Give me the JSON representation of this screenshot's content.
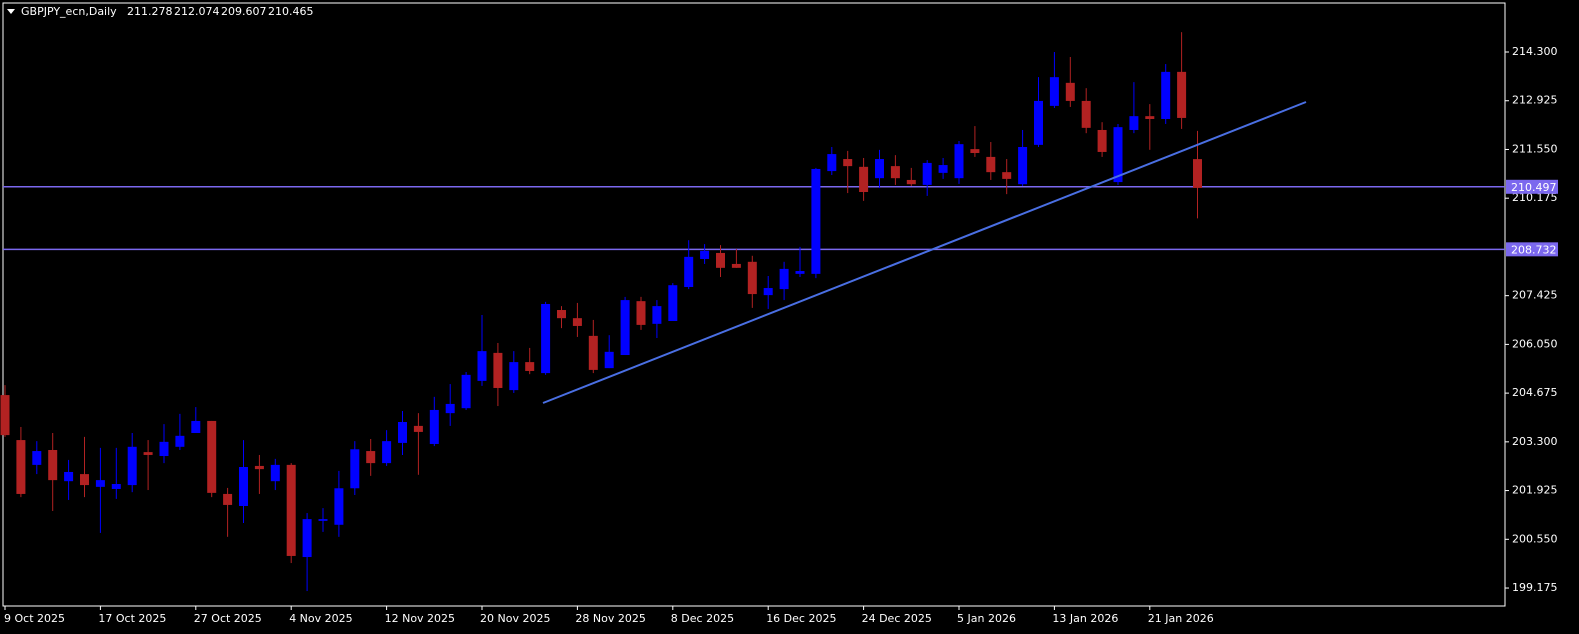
{
  "chart_data": {
    "type": "candlestick",
    "title": "GBPJPY_ecn,Daily",
    "categories": [
      "9 Oct 2025",
      null,
      null,
      null,
      null,
      null,
      "17 Oct 2025",
      null,
      null,
      null,
      null,
      null,
      "27 Oct 2025",
      null,
      null,
      null,
      null,
      null,
      "4 Nov 2025",
      null,
      null,
      null,
      null,
      null,
      "12 Nov 2025",
      null,
      null,
      null,
      null,
      null,
      "20 Nov 2025",
      null,
      null,
      null,
      null,
      null,
      "28 Nov 2025",
      null,
      null,
      null,
      null,
      null,
      "8 Dec 2025",
      null,
      null,
      null,
      null,
      null,
      "16 Dec 2025",
      null,
      null,
      null,
      null,
      null,
      "24 Dec 2025",
      null,
      null,
      null,
      null,
      null,
      "5 Jan 2026",
      null,
      null,
      null,
      null,
      null,
      "13 Jan 2026",
      null,
      null,
      null,
      null,
      null,
      "21 Jan 2026",
      null,
      null,
      null
    ],
    "open": [
      204.62,
      203.35,
      202.65,
      203.07,
      202.19,
      202.39,
      202.03,
      201.97,
      202.08,
      203.01,
      202.9,
      203.16,
      203.55,
      203.89,
      201.83,
      201.49,
      202.62,
      202.19,
      202.65,
      200.05,
      201.07,
      200.96,
      201.99,
      203.04,
      202.7,
      203.27,
      203.75,
      203.24,
      204.11,
      204.25,
      205.02,
      205.81,
      204.76,
      205.55,
      205.24,
      207.02,
      206.79,
      206.29,
      205.38,
      205.75,
      207.27,
      206.63,
      206.71,
      207.67,
      208.46,
      208.63,
      208.32,
      208.38,
      207.44,
      207.61,
      208.04,
      208.04,
      210.94,
      211.28,
      211.06,
      210.74,
      211.08,
      210.69,
      210.55,
      210.89,
      210.74,
      211.56,
      211.34,
      210.91,
      210.57,
      211.68,
      212.78,
      213.43,
      212.92,
      212.1,
      210.63,
      212.1,
      212.49,
      212.41,
      213.74,
      211.278
    ],
    "high": [
      204.9,
      203.72,
      203.32,
      203.55,
      202.79,
      203.44,
      203.13,
      203.13,
      203.55,
      203.35,
      203.8,
      204.09,
      204.28,
      203.89,
      202.0,
      203.35,
      202.93,
      202.82,
      202.7,
      201.29,
      201.43,
      202.48,
      203.32,
      203.38,
      203.63,
      204.17,
      204.11,
      204.57,
      204.93,
      205.27,
      206.88,
      206.09,
      205.86,
      205.95,
      207.25,
      207.13,
      207.22,
      206.74,
      206.31,
      207.39,
      207.39,
      207.3,
      207.78,
      208.99,
      208.88,
      208.85,
      208.74,
      208.55,
      207.98,
      208.38,
      208.8,
      211.03,
      211.62,
      211.51,
      211.31,
      211.54,
      211.39,
      211.03,
      211.25,
      211.31,
      211.79,
      212.21,
      211.76,
      211.28,
      212.1,
      213.59,
      214.3,
      214.16,
      213.28,
      212.32,
      212.27,
      213.45,
      212.83,
      213.96,
      214.86,
      212.074
    ],
    "low": [
      203.44,
      201.74,
      202.39,
      201.35,
      201.66,
      201.74,
      200.73,
      201.69,
      201.88,
      201.94,
      202.7,
      203.07,
      203.55,
      201.74,
      200.62,
      201.01,
      201.83,
      201.94,
      199.88,
      199.09,
      200.76,
      200.62,
      201.8,
      202.34,
      202.62,
      202.93,
      202.37,
      203.18,
      203.75,
      204.2,
      204.88,
      204.31,
      204.68,
      205.21,
      205.19,
      206.51,
      206.26,
      205.24,
      205.38,
      205.75,
      206.46,
      206.23,
      206.71,
      207.61,
      208.32,
      207.95,
      208.21,
      207.08,
      207.05,
      207.3,
      207.95,
      207.92,
      210.83,
      210.32,
      210.1,
      210.46,
      210.55,
      210.52,
      210.24,
      210.72,
      210.58,
      211.34,
      210.69,
      210.29,
      210.52,
      211.62,
      212.72,
      212.75,
      212.01,
      211.34,
      210.55,
      212.01,
      211.54,
      212.27,
      212.13,
      209.607
    ],
    "close": [
      203.49,
      201.83,
      203.04,
      202.22,
      202.45,
      202.08,
      202.22,
      202.11,
      203.16,
      202.93,
      203.3,
      203.47,
      203.89,
      201.86,
      201.52,
      202.59,
      202.53,
      202.65,
      200.08,
      201.12,
      201.12,
      201.99,
      203.09,
      202.7,
      203.32,
      203.86,
      203.58,
      204.2,
      204.37,
      205.19,
      205.86,
      204.82,
      205.55,
      205.3,
      207.19,
      206.79,
      206.57,
      205.33,
      205.84,
      207.3,
      206.6,
      207.13,
      207.72,
      208.52,
      208.69,
      208.21,
      208.21,
      207.47,
      207.64,
      208.18,
      208.12,
      211.0,
      211.42,
      211.08,
      210.35,
      211.28,
      210.74,
      210.57,
      211.17,
      211.11,
      211.7,
      211.45,
      210.91,
      210.72,
      211.62,
      212.92,
      213.59,
      212.92,
      212.16,
      211.48,
      212.18,
      212.49,
      212.41,
      213.74,
      212.44,
      210.465
    ],
    "ylim": [
      198.668,
      215.683
    ],
    "yticks": [
      {
        "value": 214.3,
        "label": "214.300"
      },
      {
        "value": 212.925,
        "label": "212.925"
      },
      {
        "value": 211.55,
        "label": "211.550"
      },
      {
        "value": 210.175,
        "label": "210.175"
      },
      {
        "value": 207.425,
        "label": "207.425"
      },
      {
        "value": 206.05,
        "label": "206.050"
      },
      {
        "value": 204.675,
        "label": "204.675"
      },
      {
        "value": 203.3,
        "label": "203.300"
      },
      {
        "value": 201.925,
        "label": "201.925"
      },
      {
        "value": 200.55,
        "label": "200.550"
      },
      {
        "value": 199.175,
        "label": "199.175"
      }
    ],
    "hlines": [
      210.497,
      208.732
    ],
    "up_color": "#0000ff",
    "down_color": "#b22222",
    "hline_color": "#7b68ee"
  }
}
